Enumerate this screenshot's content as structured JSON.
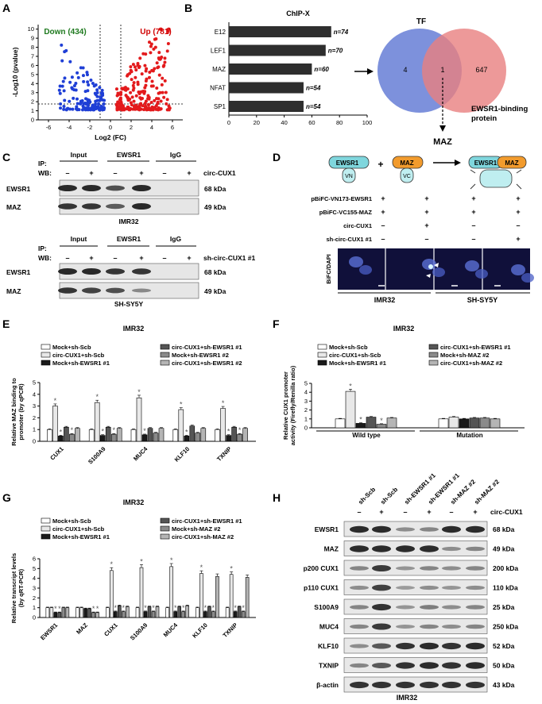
{
  "panel_labels": {
    "A": "A",
    "B": "B",
    "C": "C",
    "D": "D",
    "E": "E",
    "F": "F",
    "G": "G",
    "H": "H"
  },
  "panelA": {
    "down_label": "Down (434)",
    "up_label": "Up (781)",
    "xlabel": "Log2 (FC)",
    "ylabel": "-Log10 (pvalue)",
    "xticks": [
      "-6",
      "-4",
      "-2",
      "0",
      "2",
      "4",
      "6"
    ],
    "yticks": [
      "0",
      "1",
      "2",
      "3",
      "4",
      "5",
      "6",
      "7",
      "8",
      "9",
      "10"
    ],
    "colors": {
      "down": "#1f3fd6",
      "up": "#e31a1c"
    }
  },
  "panelB": {
    "title": "ChIP-X",
    "bars": [
      {
        "label": "E12",
        "n": "n=74",
        "value": 74
      },
      {
        "label": "LEF1",
        "n": "n=70",
        "value": 70
      },
      {
        "label": "MAZ",
        "n": "n=60",
        "value": 60
      },
      {
        "label": "NFAT",
        "n": "n=54",
        "value": 54
      },
      {
        "label": "SP1",
        "n": "n=54",
        "value": 54
      }
    ],
    "xticks": [
      "0",
      "20",
      "40",
      "60",
      "80",
      "100"
    ],
    "venn": {
      "left_label": "TF",
      "left_only": "4",
      "overlap": "1",
      "right_only": "647",
      "right_label_1": "EWSR1-binding",
      "right_label_2": "protein",
      "result": "MAZ",
      "left_color": "#6f85d8",
      "right_color": "#e98080"
    }
  },
  "panelC": {
    "ip": "IP:",
    "wb": "WB:",
    "input": "Input",
    "ewsr1": "EWSR1",
    "igg": "IgG",
    "minus": "–",
    "plus": "+",
    "top_treat": "circ-CUX1",
    "top_cell": "IMR32",
    "bottom_treat": "sh-circ-CUX1 #1",
    "bottom_cell": "SH-SY5Y",
    "rows": [
      {
        "name": "EWSR1",
        "kda": "68 kDa"
      },
      {
        "name": "MAZ",
        "kda": "49 kDa"
      }
    ]
  },
  "panelD": {
    "ewsr1": "EWSR1",
    "maz": "MAZ",
    "vn": "VN",
    "vc": "VC",
    "plus_sign": "+",
    "rows": [
      {
        "label": "pBiFC-VN173-EWSR1",
        "vals": [
          "+",
          "+",
          "+",
          "+"
        ]
      },
      {
        "label": "pBiFC-VC155-MAZ",
        "vals": [
          "+",
          "+",
          "+",
          "+"
        ]
      },
      {
        "label": "circ-CUX1",
        "vals": [
          "–",
          "+",
          "–",
          "–"
        ]
      },
      {
        "label": "sh-circ-CUX1 #1",
        "vals": [
          "–",
          "–",
          "–",
          "+"
        ]
      }
    ],
    "side_label": "BiFC/DAPI",
    "cell1": "IMR32",
    "cell2": "SH-SY5Y"
  },
  "panelE": {
    "title": "IMR32",
    "legend": [
      "Mock+sh-Scb",
      "circ-CUX1+sh-Scb",
      "Mock+sh-EWSR1 #1",
      "circ-CUX1+sh-EWSR1 #1",
      "Mock+sh-EWSR1 #2",
      "circ-CUX1+sh-EWSR1 #2"
    ],
    "ylabel_1": "Relative MAZ binding to",
    "ylabel_2": "promoter (by qPCR)",
    "yticks": [
      "0",
      "1",
      "2",
      "3",
      "4",
      "5"
    ],
    "categories": [
      "CUX1",
      "S100A9",
      "MUC4",
      "KLF10",
      "TXNIP"
    ]
  },
  "panelF": {
    "title": "IMR32",
    "legend": [
      "Mock+sh-Scb",
      "circ-CUX1+sh-Scb",
      "Mock+sh-EWSR1 #1",
      "circ-CUX1+sh-EWSR1 #1",
      "Mock+sh-MAZ #2",
      "circ-CUX1+sh-MAZ #2"
    ],
    "ylabel_1": "Relative CUX1 promoter",
    "ylabel_2": "activity (Firefly/Renilla ratio)",
    "yticks": [
      "0",
      "1",
      "2",
      "3",
      "4",
      "5"
    ],
    "categories": [
      "Wild type",
      "Mutation"
    ]
  },
  "panelG": {
    "title": "IMR32",
    "legend": [
      "Mock+sh-Scb",
      "circ-CUX1+sh-Scb",
      "Mock+sh-EWSR1 #1",
      "circ-CUX1+sh-EWSR1 #1",
      "Mock+sh-MAZ #2",
      "circ-CUX1+sh-MAZ #2"
    ],
    "ylabel_1": "Relative transcript levels",
    "ylabel_2": "(by qRT-PCR)",
    "yticks": [
      "0",
      "1",
      "2",
      "3",
      "4",
      "5",
      "6"
    ],
    "categories": [
      "EWSR1",
      "MAZ",
      "CUX1",
      "S100A9",
      "MUC4",
      "KLF10",
      "TXNIP"
    ]
  },
  "panelH": {
    "lanes": [
      "sh-Scb",
      "sh-Scb",
      "sh-EWSR1 #1",
      "sh-EWSR1 #1",
      "sh-MAZ #2",
      "sh-MAZ #2"
    ],
    "circ_vals": [
      "–",
      "+",
      "–",
      "+",
      "–",
      "+"
    ],
    "circ_label": "circ-CUX1",
    "rows": [
      {
        "name": "EWSR1",
        "kda": "68 kDa"
      },
      {
        "name": "MAZ",
        "kda": "49 kDa"
      },
      {
        "name": "p200 CUX1",
        "kda": "200 kDa"
      },
      {
        "name": "p110 CUX1",
        "kda": "110 kDa"
      },
      {
        "name": "S100A9",
        "kda": "25 kDa"
      },
      {
        "name": "MUC4",
        "kda": "250 kDa"
      },
      {
        "name": "KLF10",
        "kda": "52 kDa"
      },
      {
        "name": "TXNIP",
        "kda": "50 kDa"
      },
      {
        "name": "β-actin",
        "kda": "43 kDa"
      }
    ],
    "cell": "IMR32"
  },
  "star": "*",
  "chart_data": [
    {
      "type": "bar",
      "title": "IMR32",
      "ylabel": "Relative MAZ binding to promoter (by qPCR)",
      "ylim": [
        0,
        5
      ],
      "categories": [
        "CUX1",
        "S100A9",
        "MUC4",
        "KLF10",
        "TXNIP"
      ],
      "series": [
        {
          "name": "Mock+sh-Scb",
          "values": [
            1.0,
            1.0,
            1.0,
            1.0,
            1.0
          ]
        },
        {
          "name": "circ-CUX1+sh-Scb",
          "values": [
            3.0,
            3.3,
            3.7,
            2.7,
            2.8
          ]
        },
        {
          "name": "Mock+sh-EWSR1 #1",
          "values": [
            0.45,
            0.5,
            0.55,
            0.45,
            0.5
          ]
        },
        {
          "name": "circ-CUX1+sh-EWSR1 #1",
          "values": [
            1.2,
            1.2,
            1.1,
            1.3,
            1.2
          ]
        },
        {
          "name": "Mock+sh-EWSR1 #2",
          "values": [
            0.6,
            0.6,
            0.7,
            0.7,
            0.6
          ]
        },
        {
          "name": "circ-CUX1+sh-EWSR1 #2",
          "values": [
            1.1,
            1.1,
            1.1,
            1.1,
            1.1
          ]
        }
      ]
    },
    {
      "type": "bar",
      "title": "IMR32",
      "ylabel": "Relative CUX1 promoter activity (Firefly/Renilla ratio)",
      "ylim": [
        0,
        5
      ],
      "categories": [
        "Wild type",
        "Mutation"
      ],
      "series": [
        {
          "name": "Mock+sh-Scb",
          "values": [
            1.0,
            1.0
          ]
        },
        {
          "name": "circ-CUX1+sh-Scb",
          "values": [
            4.1,
            1.2
          ]
        },
        {
          "name": "Mock+sh-EWSR1 #1",
          "values": [
            0.5,
            1.0
          ]
        },
        {
          "name": "circ-CUX1+sh-EWSR1 #1",
          "values": [
            1.2,
            1.1
          ]
        },
        {
          "name": "Mock+sh-MAZ #2",
          "values": [
            0.4,
            1.1
          ]
        },
        {
          "name": "circ-CUX1+sh-MAZ #2",
          "values": [
            1.1,
            1.0
          ]
        }
      ]
    },
    {
      "type": "bar",
      "title": "IMR32",
      "ylabel": "Relative transcript levels (by qRT-PCR)",
      "ylim": [
        0,
        6
      ],
      "categories": [
        "EWSR1",
        "MAZ",
        "CUX1",
        "S100A9",
        "MUC4",
        "KLF10",
        "TXNIP"
      ],
      "series": [
        {
          "name": "Mock+sh-Scb",
          "values": [
            1.0,
            1.0,
            1.0,
            1.0,
            1.0,
            1.0,
            1.0
          ]
        },
        {
          "name": "circ-CUX1+sh-Scb",
          "values": [
            1.0,
            1.0,
            4.8,
            5.1,
            5.2,
            4.5,
            4.4
          ]
        },
        {
          "name": "Mock+sh-EWSR1 #1",
          "values": [
            0.5,
            0.9,
            0.6,
            0.6,
            0.6,
            0.6,
            0.6
          ]
        },
        {
          "name": "circ-CUX1+sh-EWSR1 #1",
          "values": [
            0.5,
            0.9,
            1.2,
            1.1,
            1.1,
            1.1,
            1.1
          ]
        },
        {
          "name": "Mock+sh-MAZ #2",
          "values": [
            1.0,
            0.5,
            0.6,
            0.6,
            0.6,
            0.6,
            0.6
          ]
        },
        {
          "name": "circ-CUX1+sh-MAZ #2",
          "values": [
            1.0,
            0.5,
            1.1,
            1.1,
            1.2,
            4.2,
            4.1
          ]
        }
      ]
    }
  ]
}
